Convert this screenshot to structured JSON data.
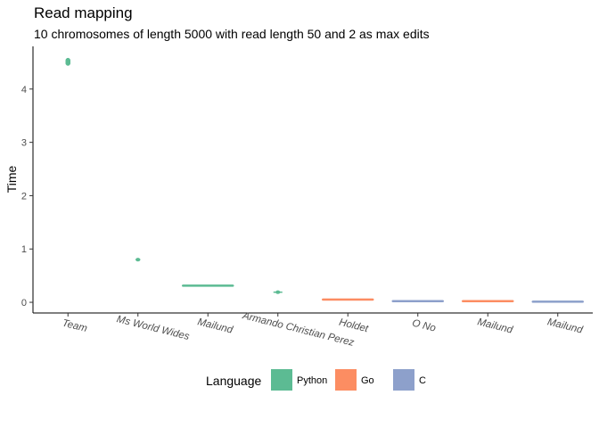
{
  "chart_data": {
    "type": "violin",
    "title": "Read mapping",
    "subtitle": "10 chromosomes of length 5000 with read length 50 and 2 as max edits",
    "xlabel": "",
    "ylabel": "Time",
    "ylim": [
      -0.2,
      4.8
    ],
    "y_ticks": [
      0,
      1,
      2,
      3,
      4
    ],
    "grid": false,
    "legend_position": "bottom",
    "legend_title": "Language",
    "series": [
      {
        "name": "Python",
        "color": "#5cbb93"
      },
      {
        "name": "Go",
        "color": "#fc8d62"
      },
      {
        "name": "C",
        "color": "#8da0cb"
      }
    ],
    "categories": [
      "Team",
      "Ms World Wides",
      "Mailund",
      "Armando Christian Perez",
      "Holdet",
      "O No",
      "Mailund",
      "Mailund"
    ],
    "entries": [
      {
        "category": "Team",
        "language": "Python",
        "min": 4.44,
        "max": 4.58,
        "median": 4.5
      },
      {
        "category": "Ms World Wides",
        "language": "Python",
        "min": 0.77,
        "max": 0.83,
        "median": 0.8
      },
      {
        "category": "Mailund",
        "language": "Python",
        "min": 0.27,
        "max": 0.32,
        "median": 0.3
      },
      {
        "category": "Armando Christian Perez",
        "language": "Python",
        "min": 0.16,
        "max": 0.22,
        "median": 0.19
      },
      {
        "category": "Holdet",
        "language": "Go",
        "min": 0.04,
        "max": 0.06,
        "median": 0.05
      },
      {
        "category": "O No",
        "language": "C",
        "min": 0.02,
        "max": 0.03,
        "median": 0.02
      },
      {
        "category": "Mailund",
        "language": "Go",
        "min": 0.02,
        "max": 0.03,
        "median": 0.02
      },
      {
        "category": "Mailund",
        "language": "C",
        "min": 0.01,
        "max": 0.02,
        "median": 0.01
      }
    ]
  }
}
